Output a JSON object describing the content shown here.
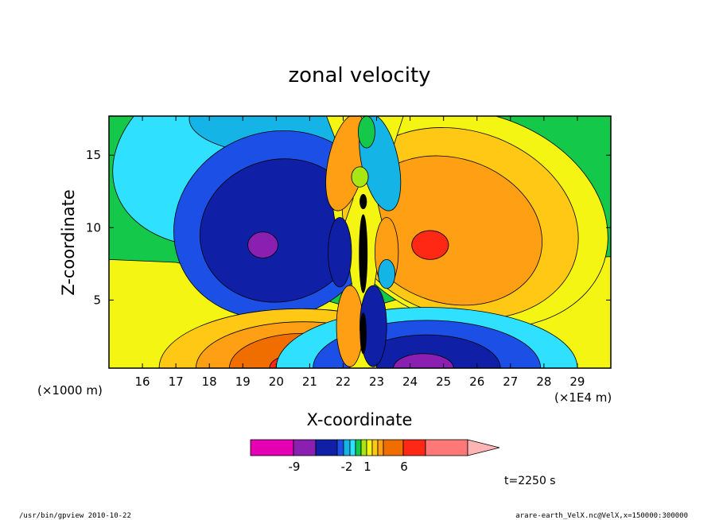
{
  "chart_data": {
    "type": "heatmap",
    "title": "zonal velocity",
    "xlabel": "X-coordinate",
    "ylabel": "Z-coordinate",
    "x_scale_note": "(×1E4 m)",
    "y_scale_note": "(×1000 m)",
    "x_ticks": [
      16,
      17,
      18,
      19,
      20,
      21,
      22,
      23,
      24,
      25,
      26,
      27,
      28,
      29
    ],
    "y_ticks": [
      5,
      10,
      15
    ],
    "xlim": [
      15,
      30
    ],
    "ylim": [
      0.3,
      17.7
    ],
    "colorbar": {
      "labeled_ticks": [
        "-9",
        "-2",
        "1",
        "6"
      ],
      "colors": [
        "#e600b4",
        "#8a1fb2",
        "#0f1fa6",
        "#1b4fe6",
        "#14b4e6",
        "#2fe0ff",
        "#14c84a",
        "#a8e614",
        "#f5f514",
        "#ffc814",
        "#ff9f14",
        "#f06e00",
        "#ff2814",
        "#ff7878",
        "#ffb4b4"
      ]
    },
    "contour_features": [
      {
        "region": "upper-left lobe",
        "x": 19.9,
        "z": 9.8,
        "sign": "negative",
        "peak": -9
      },
      {
        "region": "upper-right lobe",
        "x": 25.3,
        "z": 9.8,
        "sign": "positive",
        "peak": 6
      },
      {
        "region": "lower-left lobe",
        "x": 20.7,
        "z": 0.5,
        "sign": "positive",
        "peak": 6
      },
      {
        "region": "lower-right lobe",
        "x": 24.3,
        "z": 0.5,
        "sign": "negative",
        "peak": -9
      },
      {
        "region": "central column",
        "x": 22.6,
        "z": 8,
        "sign": "mixed",
        "peak": -9
      }
    ]
  },
  "annotations": {
    "time": "t=2250 s",
    "footer_left": "/usr/bin/gpview   2010-10-22",
    "footer_right": "arare-earth_VelX.nc@VelX,x=150000:300000"
  },
  "colors": {
    "background_field": "#14c84a",
    "frame": "#000000"
  }
}
